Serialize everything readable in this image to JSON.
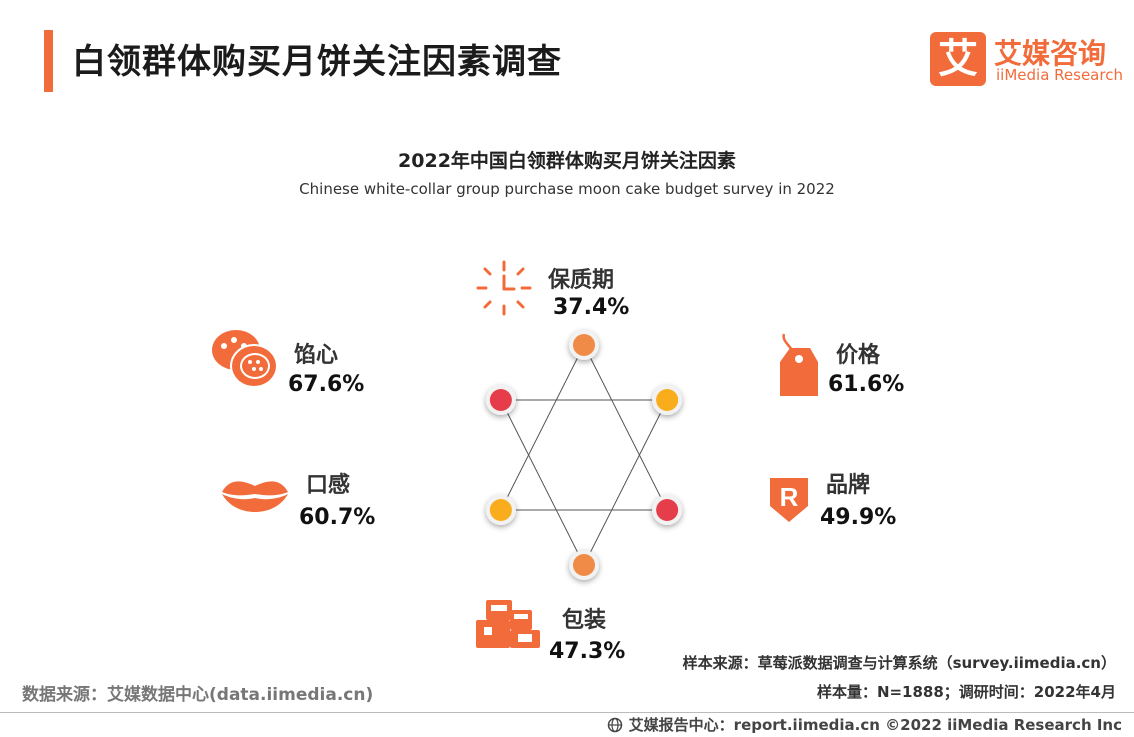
{
  "header": {
    "title": "白领群体购买月饼关注因素调查",
    "logo_mark": "艾",
    "logo_cn": "艾媒咨询",
    "logo_en": "iiMedia Research"
  },
  "chart_data": {
    "type": "other",
    "title": "2022年中国白领群体购买月饼关注因素",
    "subtitle": "Chinese white-collar group purchase moon cake budget survey in 2022",
    "unit": "%",
    "factors": [
      {
        "label": "保质期",
        "value": 37.4,
        "value_text": "37.4%",
        "icon": "clock-icon"
      },
      {
        "label": "价格",
        "value": 61.6,
        "value_text": "61.6%",
        "icon": "price-tag-icon"
      },
      {
        "label": "品牌",
        "value": 49.9,
        "value_text": "49.9%",
        "icon": "brand-r-icon"
      },
      {
        "label": "包装",
        "value": 47.3,
        "value_text": "47.3%",
        "icon": "package-icon"
      },
      {
        "label": "口感",
        "value": 60.7,
        "value_text": "60.7%",
        "icon": "lips-icon"
      },
      {
        "label": "馅心",
        "value": 67.6,
        "value_text": "67.6%",
        "icon": "mooncake-icon"
      }
    ],
    "node_colors": [
      "#ef8b47",
      "#f9ad1c",
      "#e63d4b",
      "#ef8b47",
      "#f9ad1c",
      "#e63d4b"
    ]
  },
  "colors": {
    "accent": "#f26b3a"
  },
  "footer": {
    "data_source": "数据来源：艾媒数据中心(data.iimedia.cn)",
    "sample_source": "样本来源：草莓派数据调查与计算系统（survey.iimedia.cn）",
    "sample_size": "样本量：N=1888；调研时间：2022年4月",
    "credit": "艾媒报告中心：report.iimedia.cn   ©2022  iiMedia Research  Inc",
    "credit_icon": "globe-icon"
  }
}
